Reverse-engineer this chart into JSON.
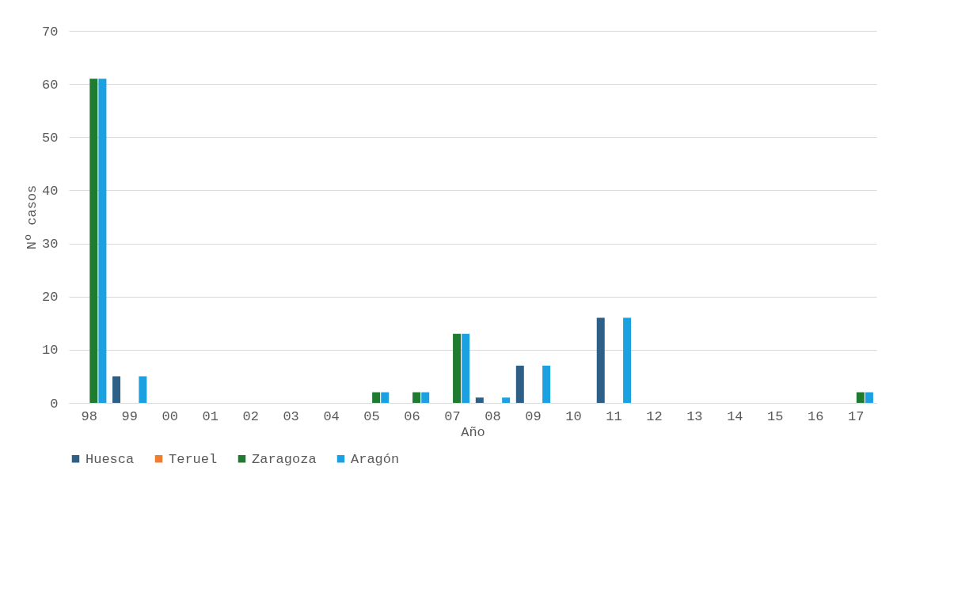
{
  "chart_data": {
    "type": "bar",
    "xlabel": "Año",
    "ylabel": "Nº casos",
    "categories": [
      "98",
      "99",
      "00",
      "01",
      "02",
      "03",
      "04",
      "05",
      "06",
      "07",
      "08",
      "09",
      "10",
      "11",
      "12",
      "13",
      "14",
      "15",
      "16",
      "17"
    ],
    "series": [
      {
        "name": "Huesca",
        "color": "#2e5f86",
        "values": [
          0,
          5,
          0,
          0,
          0,
          0,
          0,
          0,
          0,
          0,
          1,
          7,
          0,
          16,
          0,
          0,
          0,
          0,
          0,
          0
        ]
      },
      {
        "name": "Teruel",
        "color": "#ed7d31",
        "values": [
          0,
          0,
          0,
          0,
          0,
          0,
          0,
          0,
          0,
          0,
          0,
          0,
          0,
          0,
          0,
          0,
          0,
          0,
          0,
          0
        ]
      },
      {
        "name": "Zaragoza",
        "color": "#1e7b30",
        "values": [
          61,
          0,
          0,
          0,
          0,
          0,
          0,
          2,
          2,
          13,
          0,
          0,
          0,
          0,
          0,
          0,
          0,
          0,
          0,
          2
        ]
      },
      {
        "name": "Aragón",
        "color": "#1ba1e2",
        "values": [
          61,
          5,
          0,
          0,
          0,
          0,
          0,
          2,
          2,
          13,
          1,
          7,
          0,
          16,
          0,
          0,
          0,
          0,
          0,
          2
        ]
      }
    ],
    "ylim": [
      0,
      70
    ],
    "yticks": [
      0,
      10,
      20,
      30,
      40,
      50,
      60,
      70
    ],
    "grid": "y",
    "legend": "bottom"
  }
}
